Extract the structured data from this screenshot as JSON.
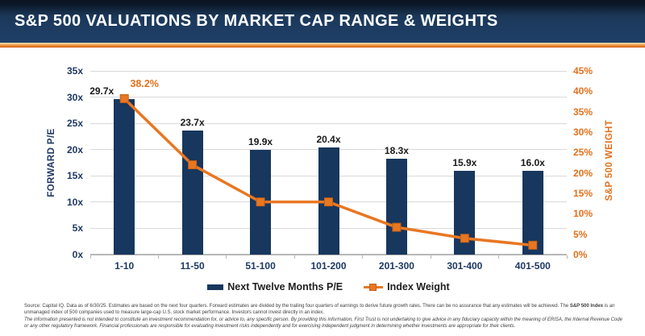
{
  "header": {
    "title": "S&P 500 VALUATIONS BY MARKET CAP RANGE & WEIGHTS"
  },
  "chart_data": {
    "type": "bar",
    "subtype": "bar-and-line-combo",
    "categories": [
      "1-10",
      "11-50",
      "51-100",
      "101-200",
      "201-300",
      "301-400",
      "401-500"
    ],
    "series": [
      {
        "name": "Next Twelve Months P/E",
        "type": "bar",
        "axis": "left",
        "values": [
          29.7,
          23.7,
          19.9,
          20.4,
          18.3,
          15.9,
          16.0
        ],
        "labels": [
          "29.7x",
          "23.7x",
          "19.9x",
          "20.4x",
          "18.3x",
          "15.9x",
          "16.0x"
        ],
        "color": "#17375e"
      },
      {
        "name": "Index Weight",
        "type": "line",
        "axis": "right",
        "values": [
          38.2,
          22.0,
          12.9,
          12.9,
          6.7,
          4.0,
          2.3
        ],
        "color": "#e87722",
        "marker_border": "#c55f14",
        "annotations": [
          {
            "index": 0,
            "text": "38.2%"
          }
        ]
      }
    ],
    "left_axis": {
      "title": "FORWARD P/E",
      "ticks": [
        "0x",
        "5x",
        "10x",
        "15x",
        "20x",
        "25x",
        "30x",
        "35x"
      ],
      "min": 0,
      "max": 35,
      "step": 5,
      "color": "#1f3864"
    },
    "right_axis": {
      "title": "S&P 500 WEIGHT",
      "ticks": [
        "0%",
        "5%",
        "10%",
        "15%",
        "20%",
        "25%",
        "30%",
        "35%",
        "40%",
        "45%"
      ],
      "min": 0,
      "max": 45,
      "step": 5,
      "color": "#e2711d"
    },
    "grid": "horizontal",
    "grid_color": "#d9d9d9",
    "axis_line_color": "#b8b8b8",
    "legend_position": "bottom"
  },
  "footer": {
    "line1_part1": "Source: Capital IQ. Data as of 6/30/25.  Estimates are based on the next four quarters.  Forward estimates are divided by the trailing four quarters of earnings to derive future growth rates. There can be no assurance that any estimates will be achieved. The ",
    "line1_bold": "S&P 500 Index",
    "line1_part2": " is an unmanaged index of 500 companies used to measure large-cap U.S. stock market performance. Investors cannot invest directly in an index.",
    "line2": "The information presented is not intended to constitute an investment recommendation for, or advice to, any specific person. By providing this information, First Trust is not undertaking to give advice in any fiduciary capacity within the meaning of ERISA, the Internal Revenue Code or any other regulatory framework. Financial professionals are responsible for evaluating investment risks independently and for exercising independent judgment in determining whether investments are appropriate for their clients."
  }
}
